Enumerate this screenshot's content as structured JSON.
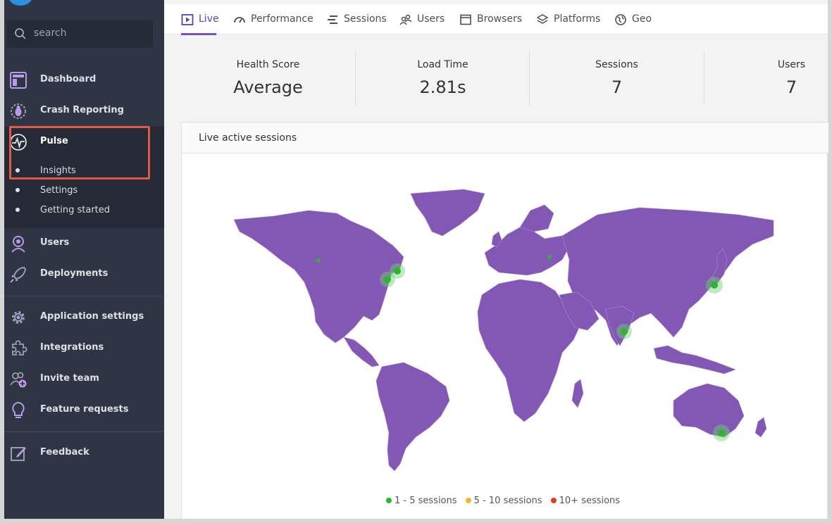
{
  "sidebar": {
    "search_placeholder": "search",
    "items": [
      {
        "label": "Dashboard"
      },
      {
        "label": "Crash Reporting"
      },
      {
        "label": "Pulse"
      },
      {
        "label": "Users"
      },
      {
        "label": "Deployments"
      },
      {
        "label": "Application settings"
      },
      {
        "label": "Integrations"
      },
      {
        "label": "Invite team"
      },
      {
        "label": "Feature requests"
      },
      {
        "label": "Feedback"
      }
    ],
    "pulse_sub": [
      {
        "label": "Insights"
      },
      {
        "label": "Settings"
      },
      {
        "label": "Getting started"
      }
    ]
  },
  "tabs": [
    {
      "label": "Live",
      "active": true
    },
    {
      "label": "Performance"
    },
    {
      "label": "Sessions"
    },
    {
      "label": "Users"
    },
    {
      "label": "Browsers"
    },
    {
      "label": "Platforms"
    },
    {
      "label": "Geo"
    }
  ],
  "stats": [
    {
      "label": "Health Score",
      "value": "Average"
    },
    {
      "label": "Load Time",
      "value": "2.81s"
    },
    {
      "label": "Sessions",
      "value": "7"
    },
    {
      "label": "Users",
      "value": "7"
    }
  ],
  "panel": {
    "title": "Live active sessions",
    "legend": [
      {
        "label": "1 - 5 sessions",
        "color": "#2db52d"
      },
      {
        "label": "5 - 10 sessions",
        "color": "#f5b82e"
      },
      {
        "label": "10+ sessions",
        "color": "#e8381e"
      }
    ]
  },
  "colors": {
    "accent": "#7950c3",
    "map_land": "#8358b5",
    "sidebar_bg": "#2f3545",
    "highlight": "#e05a47"
  }
}
